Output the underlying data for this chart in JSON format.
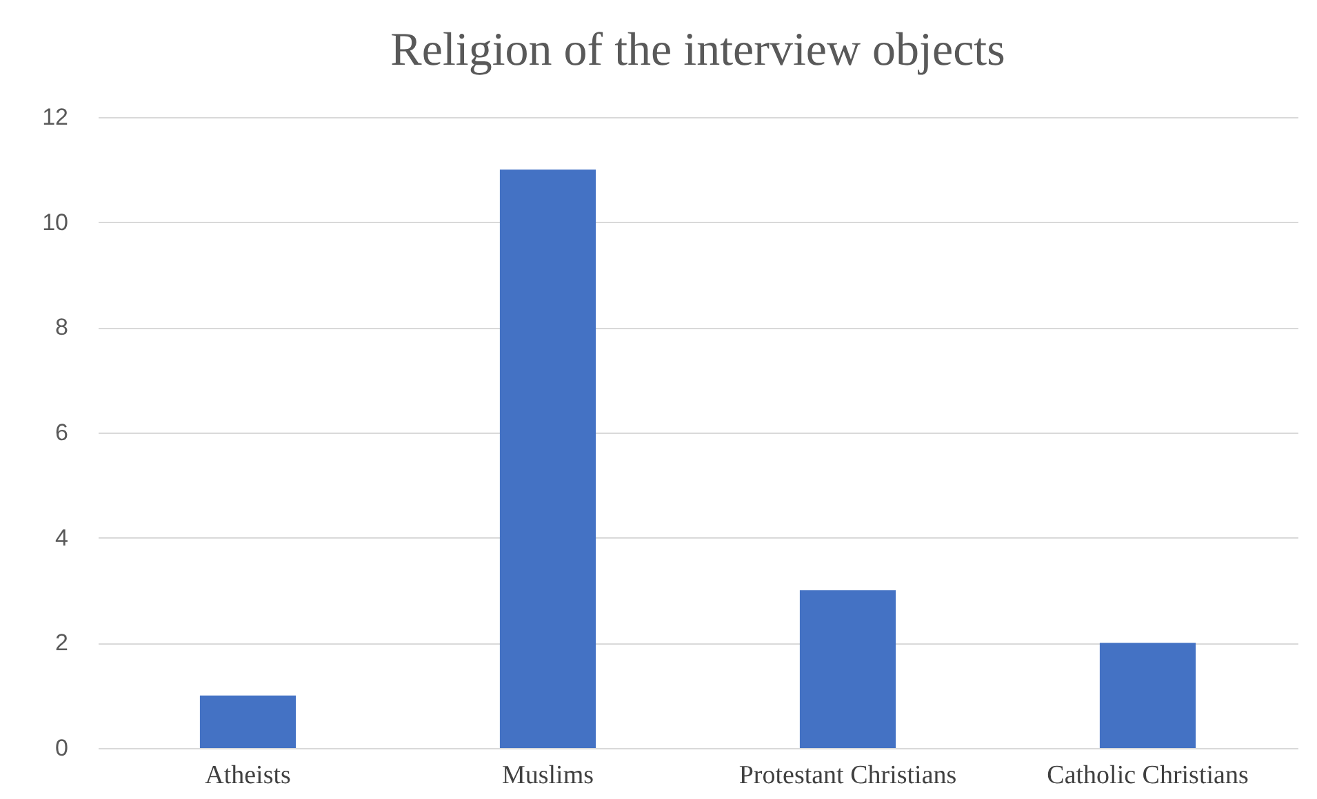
{
  "chart_data": {
    "type": "bar",
    "title": "Religion of the interview objects",
    "categories": [
      "Atheists",
      "Muslims",
      "Protestant Christians",
      "Catholic Christians"
    ],
    "values": [
      1,
      11,
      3,
      2
    ],
    "color": "#4472c4",
    "ylim": [
      0,
      12
    ],
    "yticks": [
      0,
      2,
      4,
      6,
      8,
      10,
      12
    ],
    "grid": "y"
  }
}
